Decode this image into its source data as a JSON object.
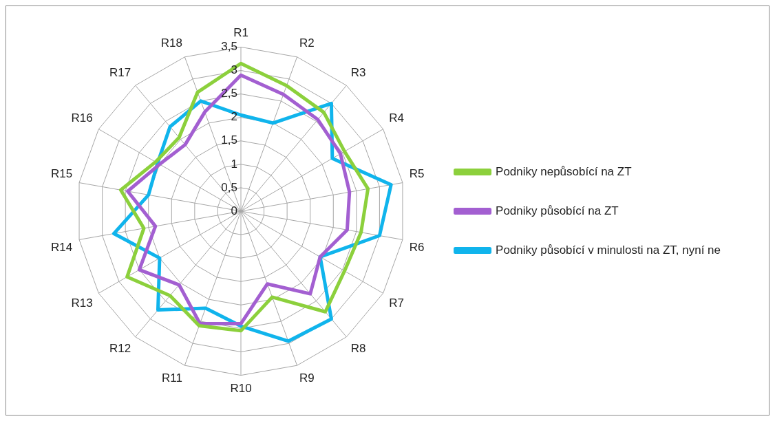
{
  "chart_data": {
    "type": "radar",
    "categories": [
      "R1",
      "R2",
      "R3",
      "R4",
      "R5",
      "R6",
      "R7",
      "R8",
      "R9",
      "R10",
      "R11",
      "R12",
      "R13",
      "R14",
      "R15",
      "R16",
      "R17",
      "R18"
    ],
    "series": [
      {
        "name": "Podniky nepůsobící na ZT",
        "color": "#8cd03c",
        "values": [
          3.15,
          2.85,
          2.75,
          2.55,
          2.75,
          2.6,
          2.55,
          2.8,
          1.95,
          2.55,
          2.6,
          2.35,
          2.8,
          2.1,
          2.6,
          2.1,
          2.05,
          2.7
        ]
      },
      {
        "name": "Podniky působící na ZT",
        "color": "#a35fd1",
        "values": [
          2.9,
          2.65,
          2.55,
          2.45,
          2.35,
          2.3,
          1.95,
          2.3,
          1.65,
          2.4,
          2.55,
          2.05,
          2.5,
          1.85,
          2.45,
          2.0,
          1.85,
          2.25
        ]
      },
      {
        "name": "Podniky působící v minulosti na ZT, nyní ne",
        "color": "#10b4ec",
        "values": [
          2.05,
          2.0,
          3.0,
          2.25,
          3.25,
          3.0,
          1.95,
          3.0,
          2.95,
          2.45,
          2.2,
          2.75,
          2.0,
          2.75,
          2.0,
          2.05,
          2.35,
          2.5
        ]
      }
    ],
    "ylim": [
      0,
      3.5
    ],
    "yticks": [
      0,
      {
        "value": 0.5,
        "label": "0,5"
      },
      1,
      {
        "value": 1.5,
        "label": "1,5"
      },
      2,
      {
        "value": 2.5,
        "label": "2,5"
      },
      3,
      {
        "value": 3.5,
        "label": "3,5"
      }
    ],
    "grid": true,
    "legend": "right",
    "marker": "none",
    "line_style": "solid"
  }
}
